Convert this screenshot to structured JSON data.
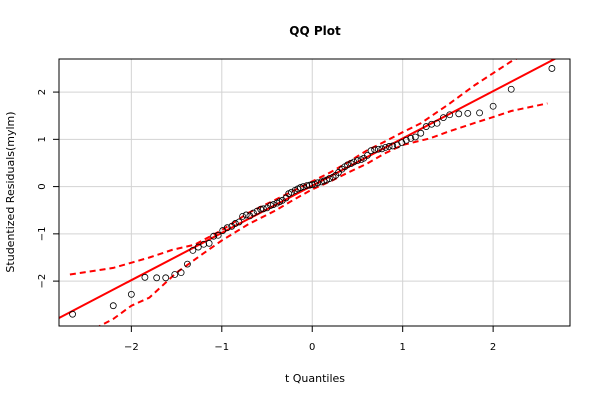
{
  "chart_data": {
    "type": "scatter",
    "title": "QQ Plot",
    "xlabel": "t Quantiles",
    "ylabel": "Studentized Residuals(mylm)",
    "xlim": [
      -2.8,
      2.85
    ],
    "ylim": [
      -2.95,
      2.7
    ],
    "xticks": [
      -2,
      -1,
      0,
      1,
      2
    ],
    "yticks": [
      -2,
      -1,
      0,
      1,
      2
    ],
    "x_tick_labels": [
      "−2",
      "−1",
      "0",
      "1",
      "2"
    ],
    "y_tick_labels": [
      "−2",
      "−1",
      "0",
      "1",
      "2"
    ],
    "grid": true,
    "reference_line": {
      "intercept": 0.02,
      "slope": 1.0,
      "color": "#ff0000"
    },
    "envelope": {
      "color": "#ff0000",
      "style": "dashed",
      "upper": [
        [
          -2.68,
          -1.86
        ],
        [
          -2.2,
          -1.72
        ],
        [
          -1.8,
          -1.5
        ],
        [
          -1.55,
          -1.34
        ],
        [
          -1.3,
          -1.23
        ],
        [
          -1.0,
          -0.92
        ],
        [
          -0.7,
          -0.55
        ],
        [
          -0.4,
          -0.27
        ],
        [
          -0.2,
          -0.08
        ],
        [
          0.0,
          0.11
        ],
        [
          0.2,
          0.3
        ],
        [
          0.4,
          0.52
        ],
        [
          0.6,
          0.76
        ],
        [
          0.8,
          0.95
        ],
        [
          1.0,
          1.15
        ],
        [
          1.2,
          1.34
        ],
        [
          1.5,
          1.73
        ],
        [
          1.8,
          2.15
        ],
        [
          2.0,
          2.4
        ],
        [
          2.2,
          2.65
        ],
        [
          2.4,
          2.85
        ]
      ],
      "lower": [
        [
          -2.4,
          -3.0
        ],
        [
          -2.2,
          -2.8
        ],
        [
          -2.0,
          -2.52
        ],
        [
          -1.8,
          -2.35
        ],
        [
          -1.5,
          -1.82
        ],
        [
          -1.2,
          -1.41
        ],
        [
          -1.0,
          -1.14
        ],
        [
          -0.7,
          -0.79
        ],
        [
          -0.4,
          -0.5
        ],
        [
          -0.2,
          -0.27
        ],
        [
          0.0,
          -0.06
        ],
        [
          0.2,
          0.11
        ],
        [
          0.4,
          0.3
        ],
        [
          0.6,
          0.48
        ],
        [
          0.8,
          0.7
        ],
        [
          1.0,
          0.88
        ],
        [
          1.3,
          1.02
        ],
        [
          1.5,
          1.16
        ],
        [
          1.8,
          1.35
        ],
        [
          2.0,
          1.47
        ],
        [
          2.2,
          1.6
        ],
        [
          2.6,
          1.76
        ]
      ]
    },
    "points": [
      [
        -2.65,
        -2.7
      ],
      [
        -2.2,
        -2.52
      ],
      [
        -2.0,
        -2.28
      ],
      [
        -1.85,
        -1.92
      ],
      [
        -1.72,
        -1.93
      ],
      [
        -1.62,
        -1.93
      ],
      [
        -1.52,
        -1.86
      ],
      [
        -1.45,
        -1.82
      ],
      [
        -1.38,
        -1.64
      ],
      [
        -1.32,
        -1.35
      ],
      [
        -1.26,
        -1.28
      ],
      [
        -1.2,
        -1.22
      ],
      [
        -1.14,
        -1.2
      ],
      [
        -1.09,
        -1.05
      ],
      [
        -1.04,
        -1.03
      ],
      [
        -0.99,
        -0.93
      ],
      [
        -0.94,
        -0.87
      ],
      [
        -0.89,
        -0.84
      ],
      [
        -0.85,
        -0.78
      ],
      [
        -0.81,
        -0.75
      ],
      [
        -0.77,
        -0.63
      ],
      [
        -0.73,
        -0.6
      ],
      [
        -0.69,
        -0.62
      ],
      [
        -0.65,
        -0.56
      ],
      [
        -0.61,
        -0.52
      ],
      [
        -0.57,
        -0.48
      ],
      [
        -0.54,
        -0.47
      ],
      [
        -0.5,
        -0.45
      ],
      [
        -0.46,
        -0.4
      ],
      [
        -0.43,
        -0.38
      ],
      [
        -0.39,
        -0.35
      ],
      [
        -0.36,
        -0.32
      ],
      [
        -0.33,
        -0.29
      ],
      [
        -0.29,
        -0.24
      ],
      [
        -0.26,
        -0.15
      ],
      [
        -0.23,
        -0.12
      ],
      [
        -0.19,
        -0.08
      ],
      [
        -0.16,
        -0.05
      ],
      [
        -0.13,
        -0.02
      ],
      [
        -0.1,
        0.0
      ],
      [
        -0.06,
        0.02
      ],
      [
        -0.03,
        0.03
      ],
      [
        0.0,
        0.04
      ],
      [
        0.03,
        0.05
      ],
      [
        0.06,
        0.08
      ],
      [
        0.1,
        0.1
      ],
      [
        0.13,
        0.12
      ],
      [
        0.16,
        0.14
      ],
      [
        0.19,
        0.17
      ],
      [
        0.23,
        0.2
      ],
      [
        0.26,
        0.24
      ],
      [
        0.29,
        0.3
      ],
      [
        0.33,
        0.37
      ],
      [
        0.36,
        0.42
      ],
      [
        0.39,
        0.46
      ],
      [
        0.43,
        0.49
      ],
      [
        0.46,
        0.52
      ],
      [
        0.5,
        0.55
      ],
      [
        0.54,
        0.57
      ],
      [
        0.57,
        0.6
      ],
      [
        0.61,
        0.66
      ],
      [
        0.65,
        0.76
      ],
      [
        0.69,
        0.78
      ],
      [
        0.73,
        0.79
      ],
      [
        0.77,
        0.8
      ],
      [
        0.81,
        0.83
      ],
      [
        0.85,
        0.85
      ],
      [
        0.89,
        0.86
      ],
      [
        0.94,
        0.88
      ],
      [
        0.99,
        0.93
      ],
      [
        1.04,
        0.98
      ],
      [
        1.09,
        1.02
      ],
      [
        1.14,
        1.05
      ],
      [
        1.2,
        1.13
      ],
      [
        1.26,
        1.27
      ],
      [
        1.32,
        1.32
      ],
      [
        1.38,
        1.34
      ],
      [
        1.45,
        1.46
      ],
      [
        1.52,
        1.52
      ],
      [
        1.62,
        1.54
      ],
      [
        1.72,
        1.55
      ],
      [
        1.85,
        1.56
      ],
      [
        2.0,
        1.7
      ],
      [
        2.2,
        2.06
      ],
      [
        2.65,
        2.5
      ]
    ]
  }
}
